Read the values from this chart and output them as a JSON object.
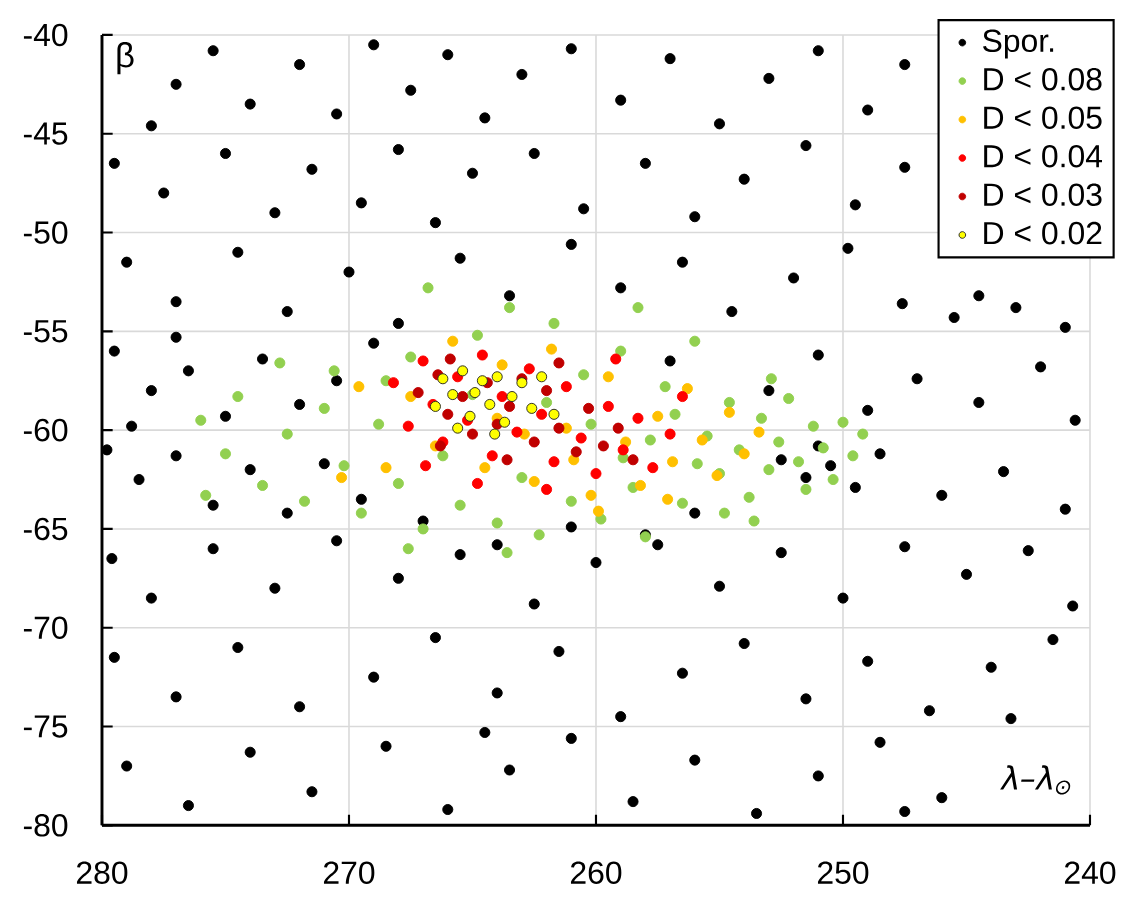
{
  "chart_data": {
    "type": "scatter",
    "xlabel": "λ–λ$_{⊙}$",
    "ylabel": "β",
    "xlim": [
      280,
      240
    ],
    "ylim": [
      -80,
      -40
    ],
    "xticks": [
      280,
      270,
      260,
      250,
      240
    ],
    "yticks": [
      -80,
      -75,
      -70,
      -65,
      -60,
      -55,
      -50,
      -45,
      -40
    ],
    "grid": true,
    "legend": "top right",
    "marker": "circle",
    "series": [
      {
        "name": "Spor.",
        "color": "#000000",
        "x": [
          277,
          275.5,
          274,
          272,
          270.5,
          269,
          267.5,
          266,
          264.5,
          263,
          261,
          259,
          257,
          255,
          253,
          251,
          249,
          278,
          247.5,
          279.5,
          277.5,
          275,
          273,
          271.5,
          269.5,
          268,
          266.5,
          265,
          262.5,
          260.5,
          258,
          256,
          254,
          251.5,
          249.5,
          247.5,
          279,
          277,
          274.5,
          272.5,
          270,
          268,
          265.5,
          263.5,
          261,
          259,
          256.5,
          254.5,
          252,
          249.8,
          247.6,
          245.5,
          243,
          241,
          244.5,
          279.5,
          278,
          276.5,
          275,
          273.5,
          272,
          270.5,
          269,
          257,
          253,
          251,
          249,
          247,
          244.5,
          242,
          240.6,
          278.8,
          277,
          279.8,
          278.5,
          277,
          275.5,
          274,
          272.5,
          271,
          269.5,
          267,
          252.5,
          251.5,
          250.5,
          249.5,
          251,
          248.5,
          246,
          243.5,
          241,
          256,
          258,
          264,
          261,
          279.6,
          278,
          275.5,
          273,
          270.5,
          268,
          265.5,
          262.5,
          260,
          257.5,
          255,
          252.5,
          250,
          247.5,
          245,
          242.5,
          240.7,
          279.5,
          277,
          274.5,
          272,
          269,
          266.5,
          264,
          261.5,
          259,
          256.5,
          254,
          251.5,
          249,
          246.5,
          244,
          241.5,
          243.2,
          279,
          276.5,
          274,
          271.5,
          268.5,
          266,
          263.5,
          261,
          258.5,
          256,
          253.5,
          251,
          248.5,
          246,
          247.5,
          264.5
        ],
        "values": [
          -42.5,
          -40.8,
          -43.5,
          -41.5,
          -44,
          -40.5,
          -42.8,
          -41,
          -44.2,
          -42,
          -40.7,
          -43.3,
          -41.2,
          -44.5,
          -42.2,
          -40.8,
          -43.8,
          -44.6,
          -41.5,
          -46.5,
          -48,
          -46,
          -49,
          -46.8,
          -48.5,
          -45.8,
          -49.5,
          -47,
          -46,
          -48.8,
          -46.5,
          -49.2,
          -47.3,
          -45.6,
          -48.6,
          -46.7,
          -51.5,
          -53.5,
          -51,
          -54,
          -52,
          -54.6,
          -51.3,
          -53.2,
          -50.6,
          -52.8,
          -51.5,
          -54,
          -52.3,
          -50.8,
          -53.6,
          -54.3,
          -53.8,
          -54.8,
          -53.2,
          -56,
          -58,
          -57,
          -59.3,
          -56.4,
          -58.7,
          -57.5,
          -55.6,
          -56.5,
          -58,
          -56.2,
          -59,
          -57.4,
          -58.6,
          -56.8,
          -59.5,
          -59.8,
          -55.3,
          -61,
          -62.5,
          -61.3,
          -63.8,
          -62,
          -64.2,
          -61.7,
          -63.5,
          -64.6,
          -61.5,
          -62.4,
          -61.8,
          -62.9,
          -60.8,
          -61.2,
          -63.3,
          -62.1,
          -64,
          -64.2,
          -65.3,
          -65.8,
          -64.9,
          -66.5,
          -68.5,
          -66,
          -68,
          -65.6,
          -67.5,
          -66.3,
          -68.8,
          -66.7,
          -65.8,
          -67.9,
          -66.2,
          -68.5,
          -65.9,
          -67.3,
          -66.1,
          -68.9,
          -71.5,
          -73.5,
          -71,
          -74,
          -72.5,
          -70.5,
          -73.3,
          -71.2,
          -74.5,
          -72.3,
          -70.8,
          -73.6,
          -71.7,
          -74.2,
          -72,
          -70.6,
          -74.6,
          -77,
          -79,
          -76.3,
          -78.3,
          -76,
          -79.2,
          -77.2,
          -75.6,
          -78.8,
          -76.7,
          -79.4,
          -77.5,
          -75.8,
          -78.6,
          -79.3,
          -75.3
        ]
      },
      {
        "name": "D < 0.08",
        "color": "#92d050",
        "x": [
          276,
          275,
          274.5,
          273.5,
          272.5,
          271.8,
          271,
          270.2,
          269.5,
          268.8,
          268,
          267.5,
          267,
          266.2,
          265.5,
          264.8,
          264,
          263.5,
          263,
          262.3,
          261.7,
          261,
          260.5,
          259.8,
          259,
          258.5,
          258,
          257.2,
          256.5,
          256,
          255.5,
          255,
          254.6,
          254.2,
          253.8,
          253.3,
          253,
          252.6,
          252.2,
          251.8,
          251.5,
          251.2,
          250.8,
          250.4,
          250,
          249.6,
          249.2,
          254.8,
          257.8,
          256.8,
          262,
          265,
          268.5,
          270.6,
          266.8,
          272.8,
          275.8,
          260.2,
          258.9,
          252.9,
          255.9,
          253.6,
          267.6,
          263.6,
          258.3
        ],
        "values": [
          -59.5,
          -61.2,
          -58.3,
          -62.8,
          -60.2,
          -63.6,
          -58.9,
          -61.8,
          -64.2,
          -59.7,
          -62.7,
          -56.3,
          -65,
          -61.3,
          -63.8,
          -55.2,
          -64.7,
          -53.8,
          -62.4,
          -65.3,
          -54.6,
          -63.6,
          -57.2,
          -64.5,
          -56,
          -62.9,
          -65.4,
          -57.8,
          -63.7,
          -55.5,
          -60.3,
          -62.2,
          -58.6,
          -61,
          -63.4,
          -59.4,
          -62,
          -60.6,
          -58.4,
          -61.6,
          -63,
          -59.8,
          -60.9,
          -62.5,
          -59.6,
          -61.3,
          -60.2,
          -64.2,
          -60.5,
          -59.2,
          -58.6,
          -58.2,
          -57.5,
          -57,
          -52.8,
          -56.6,
          -63.3,
          -59.7,
          -61.4,
          -57.4,
          -61.7,
          -64.6,
          -66,
          -66.2,
          -53.8
        ]
      },
      {
        "name": "D < 0.05",
        "color": "#ffc000",
        "x": [
          267.5,
          266.5,
          265.8,
          264.5,
          263.8,
          262.5,
          261.8,
          260.9,
          260.2,
          259.5,
          258.8,
          258.2,
          257.5,
          256.9,
          256.3,
          255.7,
          255.1,
          254.6,
          254,
          253.4,
          268.5,
          269.6,
          264,
          261.2,
          259.9,
          257.1,
          262.9,
          270.3
        ],
        "values": [
          -58.3,
          -60.8,
          -55.5,
          -61.9,
          -56.7,
          -62.6,
          -55.9,
          -61.5,
          -63.3,
          -57.3,
          -60.6,
          -62.8,
          -59.3,
          -61.6,
          -57.9,
          -60.5,
          -62.3,
          -59.1,
          -61.2,
          -60.1,
          -61.9,
          -57.8,
          -59.4,
          -59.9,
          -64.1,
          -63.5,
          -60.2,
          -62.4
        ]
      },
      {
        "name": "D < 0.04",
        "color": "#ff0000",
        "x": [
          268.2,
          267.6,
          267,
          266.6,
          266.2,
          265.6,
          265.2,
          264.6,
          264.2,
          263.8,
          263.2,
          262.7,
          262.2,
          261.7,
          261.2,
          260.6,
          260,
          259.5,
          258.9,
          258.3,
          257.7,
          257,
          256.5,
          264.8,
          266.9,
          262,
          259.2
        ],
        "values": [
          -57.6,
          -59.8,
          -56.5,
          -58.7,
          -60.6,
          -57.3,
          -59.5,
          -56.2,
          -61.3,
          -58.3,
          -60.1,
          -56.9,
          -59.2,
          -61.6,
          -57.8,
          -60.4,
          -62.2,
          -58.8,
          -61,
          -59.4,
          -61.9,
          -60.2,
          -58.3,
          -62.7,
          -61.8,
          -63,
          -56.4
        ]
      },
      {
        "name": "D < 0.03",
        "color": "#c00000",
        "x": [
          267.2,
          266.4,
          266,
          265.4,
          265,
          264.4,
          264,
          263.5,
          263,
          262.5,
          262,
          261.5,
          260.8,
          260.3,
          259.7,
          259.1,
          258.5,
          266.3,
          263.6,
          265.9,
          261.5
        ],
        "values": [
          -58.1,
          -57.2,
          -59.2,
          -58.3,
          -60.2,
          -57.6,
          -59.7,
          -58.8,
          -57.4,
          -60.6,
          -58,
          -59.9,
          -61.1,
          -58.9,
          -60.8,
          -59.9,
          -61.5,
          -60.8,
          -61.5,
          -56.4,
          -56.6
        ]
      },
      {
        "name": "D < 0.02",
        "color": "#ffff00",
        "x": [
          266.5,
          266.2,
          265.8,
          265.4,
          265.1,
          264.9,
          264.6,
          264.3,
          264,
          263.7,
          263.4,
          263,
          262.6,
          262.2,
          261.7,
          265.6,
          264.1
        ],
        "values": [
          -58.8,
          -57.4,
          -58.2,
          -57,
          -59.3,
          -58.1,
          -57.5,
          -58.7,
          -57.3,
          -59.6,
          -58.3,
          -57.6,
          -58.9,
          -57.3,
          -59.2,
          -59.9,
          -60.2
        ]
      }
    ]
  }
}
